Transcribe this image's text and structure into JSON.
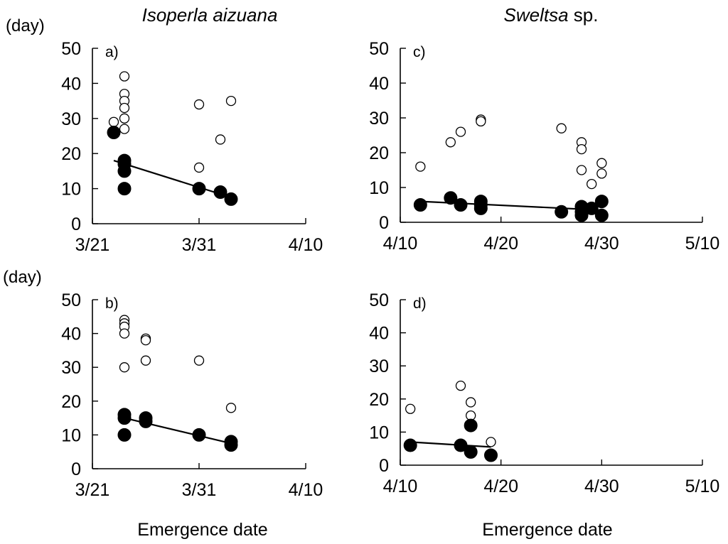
{
  "titles": {
    "left_genus": "Isoperla",
    "left_species": "aizuana",
    "right_genus": "Sweltsa",
    "right_species": "sp."
  },
  "unit_labels": {
    "top": "(day)",
    "bottom": "(day)"
  },
  "xaxis_titles": {
    "left": "Emergence date",
    "right": "Emergence date"
  },
  "colors": {
    "open_marker": "#ffffff",
    "filled_marker": "#000000",
    "line": "#000000"
  },
  "chart_data": [
    {
      "type": "scatter",
      "panel": "a)",
      "x_tick_labels": [
        "3/21",
        "3/31",
        "4/10"
      ],
      "xlim": [
        "3/21",
        "4/10"
      ],
      "y_ticks": [
        0,
        10,
        20,
        30,
        40,
        50
      ],
      "ylim": [
        0,
        50
      ],
      "grid": false,
      "series": [
        {
          "marker": "open",
          "points": [
            [
              "3/23",
              29
            ],
            [
              "3/24",
              42
            ],
            [
              "3/24",
              37
            ],
            [
              "3/24",
              35
            ],
            [
              "3/24",
              33
            ],
            [
              "3/24",
              30
            ],
            [
              "3/24",
              27
            ],
            [
              "3/31",
              34
            ],
            [
              "3/31",
              16
            ],
            [
              "4/2",
              24
            ],
            [
              "4/3",
              35
            ]
          ]
        },
        {
          "marker": "filled",
          "points": [
            [
              "3/23",
              26
            ],
            [
              "3/24",
              18
            ],
            [
              "3/24",
              17
            ],
            [
              "3/24",
              15
            ],
            [
              "3/24",
              10
            ],
            [
              "3/31",
              10
            ],
            [
              "4/2",
              9
            ],
            [
              "4/3",
              7
            ]
          ]
        }
      ],
      "trendline": [
        [
          "3/23",
          18
        ],
        [
          "4/3",
          7.5
        ]
      ]
    },
    {
      "type": "scatter",
      "panel": "b)",
      "x_tick_labels": [
        "3/21",
        "3/31",
        "4/10"
      ],
      "xlim": [
        "3/21",
        "4/10"
      ],
      "y_ticks": [
        0,
        10,
        20,
        30,
        40,
        50
      ],
      "ylim": [
        0,
        50
      ],
      "grid": false,
      "series": [
        {
          "marker": "open",
          "points": [
            [
              "3/24",
              44
            ],
            [
              "3/24",
              43
            ],
            [
              "3/24",
              42
            ],
            [
              "3/24",
              40
            ],
            [
              "3/24",
              30
            ],
            [
              "3/26",
              38.5
            ],
            [
              "3/26",
              38
            ],
            [
              "3/26",
              32
            ],
            [
              "3/31",
              32
            ],
            [
              "4/3",
              18
            ]
          ]
        },
        {
          "marker": "filled",
          "points": [
            [
              "3/24",
              16
            ],
            [
              "3/24",
              15
            ],
            [
              "3/24",
              10
            ],
            [
              "3/26",
              15
            ],
            [
              "3/26",
              14
            ],
            [
              "3/31",
              10
            ],
            [
              "4/3",
              8
            ],
            [
              "4/3",
              7
            ]
          ]
        }
      ],
      "trendline": [
        [
          "3/24",
          15
        ],
        [
          "4/3",
          7.5
        ]
      ]
    },
    {
      "type": "scatter",
      "panel": "c)",
      "x_tick_labels": [
        "4/10",
        "4/20",
        "4/30",
        "5/10"
      ],
      "xlim": [
        "4/10",
        "5/10"
      ],
      "y_ticks": [
        0,
        10,
        20,
        30,
        40,
        50
      ],
      "ylim": [
        0,
        50
      ],
      "grid": false,
      "series": [
        {
          "marker": "open",
          "points": [
            [
              "4/12",
              16
            ],
            [
              "4/15",
              23
            ],
            [
              "4/16",
              26
            ],
            [
              "4/18",
              29.5
            ],
            [
              "4/18",
              29
            ],
            [
              "4/26",
              27
            ],
            [
              "4/28",
              23
            ],
            [
              "4/28",
              21
            ],
            [
              "4/28",
              15
            ],
            [
              "4/29",
              11
            ],
            [
              "4/30",
              17
            ],
            [
              "4/30",
              14
            ]
          ]
        },
        {
          "marker": "filled",
          "points": [
            [
              "4/12",
              5
            ],
            [
              "4/15",
              7
            ],
            [
              "4/16",
              5
            ],
            [
              "4/18",
              6
            ],
            [
              "4/18",
              5
            ],
            [
              "4/18",
              4
            ],
            [
              "4/26",
              3
            ],
            [
              "4/28",
              4.5
            ],
            [
              "4/28",
              3
            ],
            [
              "4/28",
              2
            ],
            [
              "4/29",
              4
            ],
            [
              "4/30",
              6
            ],
            [
              "4/30",
              2
            ]
          ]
        }
      ],
      "trendline": [
        [
          "4/12",
          6
        ],
        [
          "4/30",
          3.5
        ]
      ]
    },
    {
      "type": "scatter",
      "panel": "d)",
      "x_tick_labels": [
        "4/10",
        "4/20",
        "4/30",
        "5/10"
      ],
      "xlim": [
        "4/10",
        "5/10"
      ],
      "y_ticks": [
        0,
        10,
        20,
        30,
        40,
        50
      ],
      "ylim": [
        0,
        50
      ],
      "grid": false,
      "series": [
        {
          "marker": "open",
          "points": [
            [
              "4/11",
              17
            ],
            [
              "4/16",
              24
            ],
            [
              "4/17",
              19
            ],
            [
              "4/17",
              15
            ],
            [
              "4/19",
              7
            ]
          ]
        },
        {
          "marker": "filled",
          "points": [
            [
              "4/11",
              6
            ],
            [
              "4/16",
              6
            ],
            [
              "4/17",
              12
            ],
            [
              "4/17",
              4
            ],
            [
              "4/19",
              3
            ]
          ]
        }
      ],
      "trendline": [
        [
          "4/11",
          7
        ],
        [
          "4/19",
          5.5
        ]
      ]
    }
  ]
}
